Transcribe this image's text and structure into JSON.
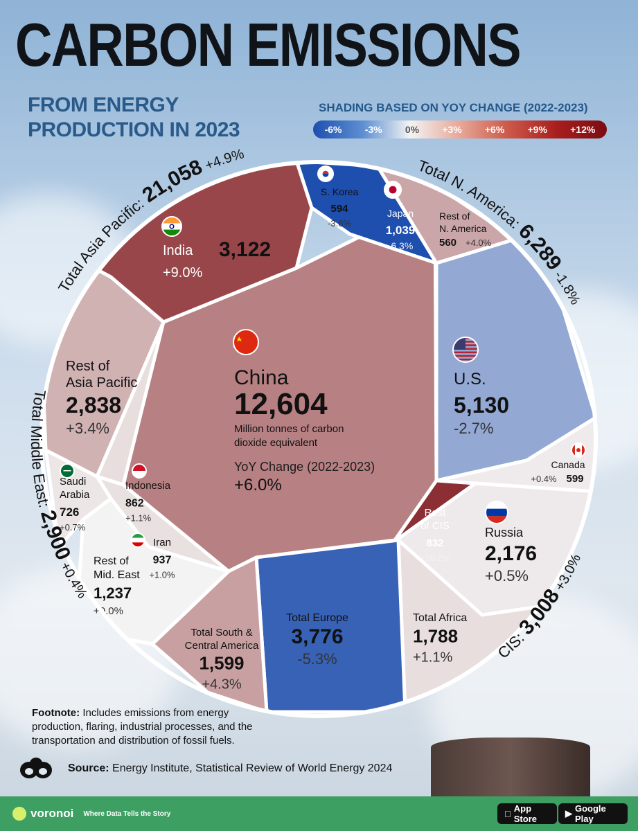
{
  "title": "CARBON EMISSIONS",
  "subtitle": "FROM ENERGY PRODUCTION IN 2023",
  "legend": {
    "title": "SHADING BASED ON YOY CHANGE (2022-2023)",
    "ticks": [
      "-6%",
      "-3%",
      "0%",
      "+3%",
      "+6%",
      "+9%",
      "+12%"
    ]
  },
  "chart_data": {
    "type": "voronoi-treemap",
    "unit": "Million tonnes of carbon dioxide equivalent",
    "change_label": "YoY Change (2022-2023)",
    "color_scale": {
      "min": -6,
      "max": 12,
      "colors": [
        "#1e4fae",
        "#f3f3f3",
        "#7a0c12"
      ]
    },
    "regions": [
      {
        "label": "Total Asia Pacific:",
        "value": "21,058",
        "change": "+4.9%"
      },
      {
        "label": "Total N. America:",
        "value": "6,289",
        "change": "-1.8%"
      },
      {
        "label": "CIS:",
        "value": "3,008",
        "change": "+3.0%"
      },
      {
        "label": "Total Middle East:",
        "value": "2,900",
        "change": "+0.4%"
      }
    ],
    "cells": [
      {
        "id": "china",
        "name": "China",
        "value": 12604,
        "value_text": "12,604",
        "change": 6.0,
        "change_text": "+6.0%",
        "flag": "china"
      },
      {
        "id": "india",
        "name": "India",
        "value": 3122,
        "value_text": "3,122",
        "change": 9.0,
        "change_text": "+9.0%",
        "flag": "india"
      },
      {
        "id": "skorea",
        "name": "S. Korea",
        "value": 594,
        "value_text": "594",
        "change": -3.6,
        "change_text": "-3.6%",
        "flag": "south-korea"
      },
      {
        "id": "japan",
        "name": "Japan",
        "value": 1039,
        "value_text": "1,039",
        "change": -6.3,
        "change_text": "-6.3%",
        "flag": "japan"
      },
      {
        "id": "restna",
        "name": "Rest of N. America",
        "value": 560,
        "value_text": "560",
        "change": 4.0,
        "change_text": "+4.0%"
      },
      {
        "id": "us",
        "name": "U.S.",
        "value": 5130,
        "value_text": "5,130",
        "change": -2.7,
        "change_text": "-2.7%",
        "flag": "usa"
      },
      {
        "id": "canada",
        "name": "Canada",
        "value": 599,
        "value_text": "599",
        "change": 0.4,
        "change_text": "+0.4%",
        "flag": "canada"
      },
      {
        "id": "russia",
        "name": "Russia",
        "value": 2176,
        "value_text": "2,176",
        "change": 0.5,
        "change_text": "+0.5%",
        "flag": "russia"
      },
      {
        "id": "restcis",
        "name": "Rest of CIS",
        "value": 832,
        "value_text": "832",
        "change": 10.2,
        "change_text": "+10.2%"
      },
      {
        "id": "africa",
        "name": "Total Africa",
        "value": 1788,
        "value_text": "1,788",
        "change": 1.1,
        "change_text": "+1.1%"
      },
      {
        "id": "europe",
        "name": "Total Europe",
        "value": 3776,
        "value_text": "3,776",
        "change": -5.3,
        "change_text": "-5.3%"
      },
      {
        "id": "sca",
        "name": "Total South & Central America",
        "value": 1599,
        "value_text": "1,599",
        "change": 4.3,
        "change_text": "+4.3%"
      },
      {
        "id": "restme",
        "name": "Rest of Mid. East",
        "value": 1237,
        "value_text": "1,237",
        "change": 0.0,
        "change_text": "+0.0%"
      },
      {
        "id": "iran",
        "name": "Iran",
        "value": 937,
        "value_text": "937",
        "change": 1.0,
        "change_text": "+1.0%",
        "flag": "iran"
      },
      {
        "id": "saudi",
        "name": "Saudi Arabia",
        "value": 726,
        "value_text": "726",
        "change": 0.7,
        "change_text": "+0.7%",
        "flag": "saudi-arabia"
      },
      {
        "id": "indonesia",
        "name": "Indonesia",
        "value": 862,
        "value_text": "862",
        "change": 1.1,
        "change_text": "+1.1%",
        "flag": "indonesia"
      },
      {
        "id": "restap",
        "name": "Rest of Asia Pacific",
        "value": 2838,
        "value_text": "2,838",
        "change": 3.4,
        "change_text": "+3.4%"
      }
    ]
  },
  "footnote": {
    "label": "Footnote:",
    "text": "Includes emissions from energy production, flaring, industrial processes, and the transportation and distribution of fossil fuels."
  },
  "source": {
    "label": "Source:",
    "text": "Energy Institute, Statistical Review of World Energy 2024"
  },
  "footer": {
    "brand": "voronoi",
    "tagline": "Where Data Tells the Story",
    "app_store": "App Store",
    "google_play": "Google Play"
  }
}
